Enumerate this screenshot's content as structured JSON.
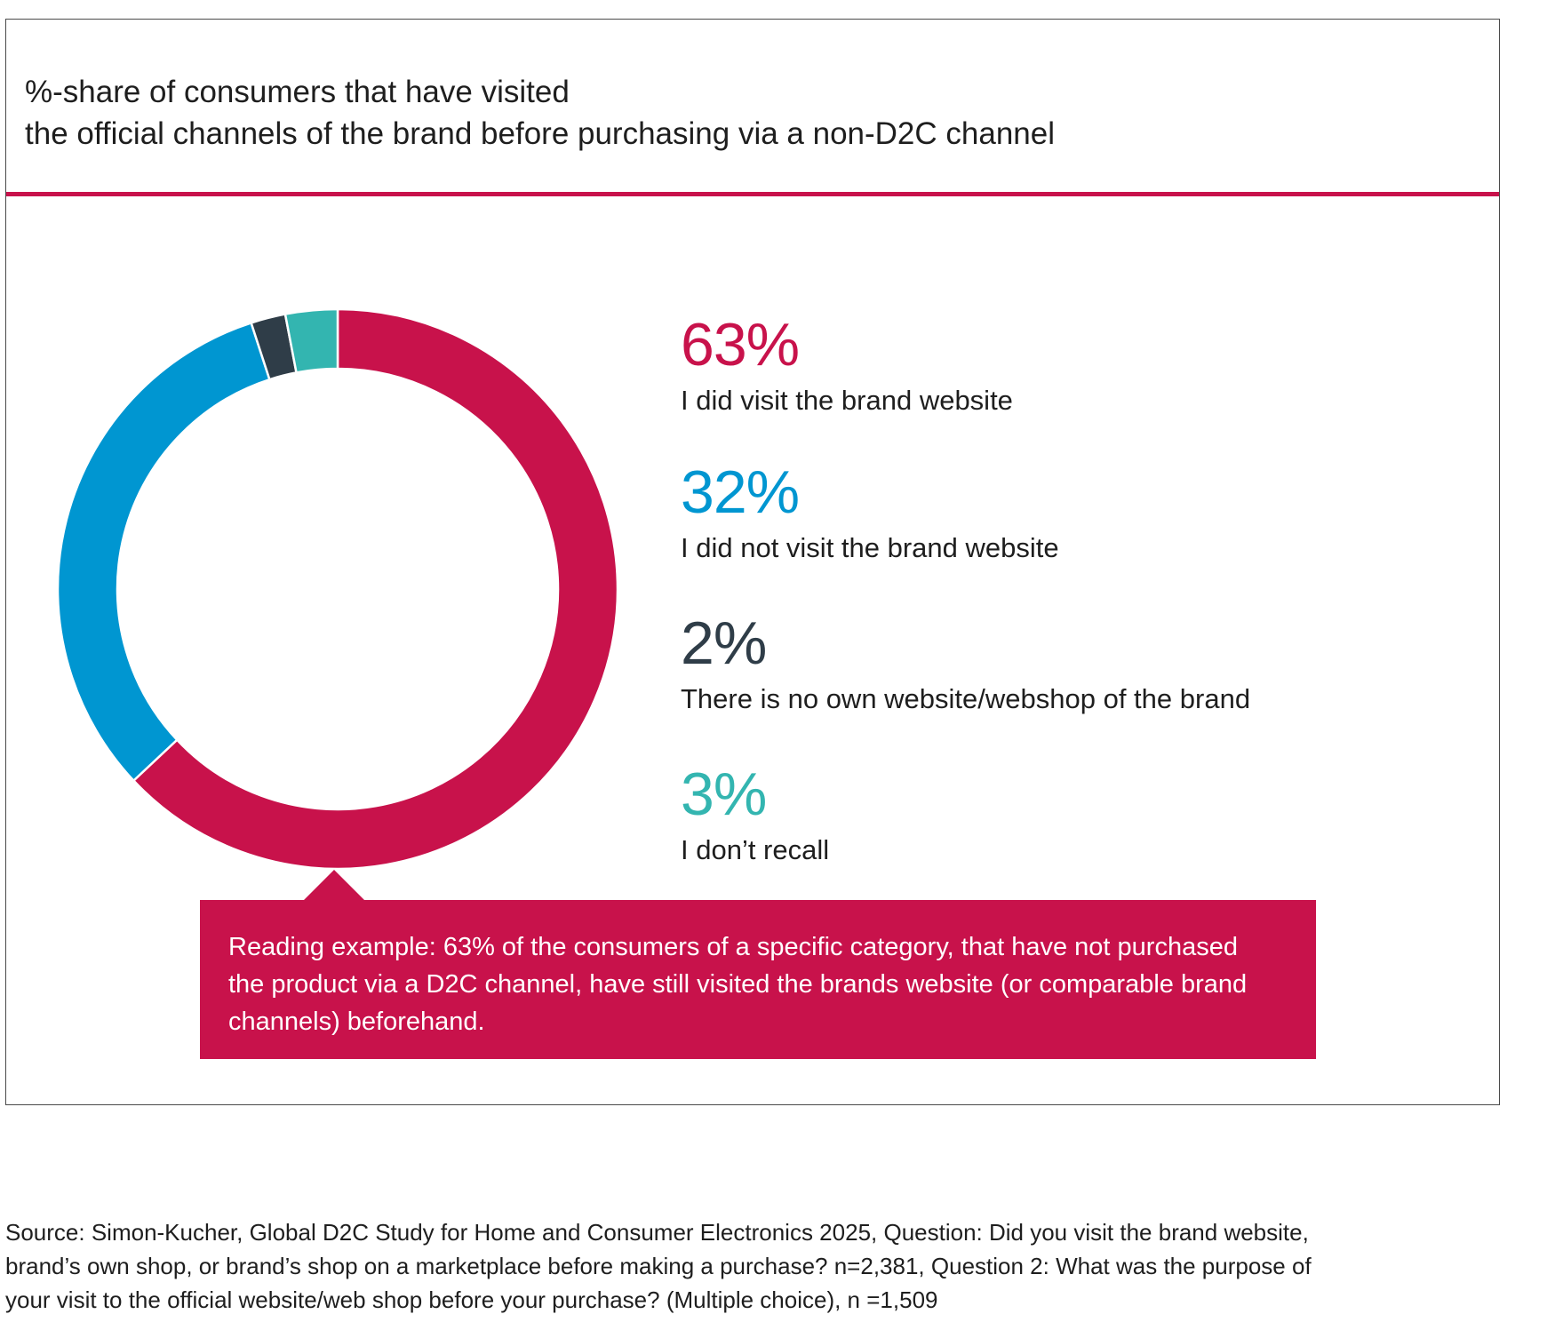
{
  "title_lines": [
    "%-share of consumers that have visited",
    "the official channels of the brand before purchasing via a non-D2C channel"
  ],
  "chart_data": {
    "type": "pie",
    "style": "donut",
    "title": "%-share of consumers that have visited the official channels of the brand before purchasing via a non-D2C channel",
    "categories": [
      "I did visit the brand website",
      "I did not visit the brand website",
      "There is no own website/webshop of the brand",
      "I don’t recall"
    ],
    "values": [
      63,
      32,
      2,
      3
    ],
    "value_labels": [
      "63%",
      "32%",
      "2%",
      "3%"
    ],
    "colors": [
      "#c8124b",
      "#0096d1",
      "#2f3d48",
      "#33b5b0"
    ],
    "legend_position": "right"
  },
  "callout": {
    "text": "Reading example: 63% of the consumers of a specific category, that have not purchased the product via a D2C channel, have still visited the brands website (or comparable brand channels) beforehand."
  },
  "source_lines": [
    "Source: Simon-Kucher, Global D2C Study for Home and Consumer Electronics 2025, Question: Did you visit the brand website,",
    "brand’s own shop, or brand’s shop on a marketplace before making a purchase? n=2,381, Question 2: What was the purpose of",
    "your visit to the official website/web shop before your purchase? (Multiple choice), n =1,509"
  ]
}
